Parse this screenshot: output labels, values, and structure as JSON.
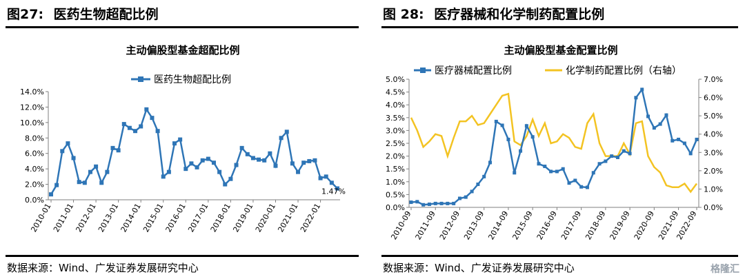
{
  "figures": [
    {
      "label": "图27:",
      "title": "医药生物超配比例"
    },
    {
      "label": "图 28:",
      "title": "医疗器械和化学制药配置比例"
    }
  ],
  "source_left": "数据来源：Wind、广发证券发展研究中心",
  "source_right": "数据来源：Wind、广发证券发展研究中心",
  "watermark": "格隆汇",
  "chart_data": [
    {
      "type": "line",
      "title": "主动偏股型基金超配比例",
      "legend_position": "top",
      "series": [
        {
          "name": "医药生物超配比例",
          "color": "#2e75b6",
          "values": [
            0.7,
            1.9,
            6.3,
            7.3,
            5.4,
            2.3,
            2.2,
            3.6,
            4.3,
            2.2,
            3.6,
            6.7,
            6.4,
            9.8,
            9.3,
            8.9,
            9.5,
            11.7,
            10.6,
            8.9,
            3.0,
            3.6,
            7.3,
            7.8,
            4.0,
            4.7,
            4.2,
            5.1,
            5.3,
            4.8,
            3.6,
            2.0,
            2.7,
            4.5,
            6.7,
            5.9,
            5.4,
            5.2,
            5.1,
            6.0,
            4.4,
            8.0,
            8.8,
            4.7,
            3.6,
            4.8,
            5.0,
            5.1,
            2.8,
            3.0,
            2.2,
            1.47
          ]
        }
      ],
      "x_tick_labels": [
        "2010-01",
        "2011-01",
        "2012-01",
        "2013-01",
        "2014-01",
        "2015-01",
        "2016-01",
        "2017-01",
        "2018-01",
        "2019-01",
        "2020-01",
        "2021-01",
        "2022-01"
      ],
      "y_tick_labels": [
        "0.0%",
        "2.0%",
        "4.0%",
        "6.0%",
        "8.0%",
        "10.0%",
        "12.0%",
        "14.0%"
      ],
      "ylim": [
        0,
        14
      ],
      "data_label": "1.47%",
      "grid": false
    },
    {
      "type": "line",
      "title": "主动偏股型基金配置比例",
      "legend_position": "top",
      "series": [
        {
          "name": "医疗器械配置比例",
          "axis": "left",
          "color": "#2e75b6",
          "values": [
            0.2,
            0.22,
            0.1,
            0.12,
            0.15,
            0.15,
            0.15,
            0.15,
            0.35,
            0.4,
            0.62,
            0.9,
            1.2,
            1.75,
            3.35,
            3.2,
            2.65,
            1.35,
            2.2,
            3.18,
            2.75,
            1.7,
            1.6,
            1.4,
            1.4,
            1.5,
            0.95,
            1.05,
            0.8,
            0.78,
            1.35,
            1.7,
            1.8,
            2.0,
            1.95,
            2.2,
            2.1,
            4.28,
            4.6,
            3.55,
            3.1,
            3.25,
            3.6,
            2.6,
            2.65,
            2.5,
            2.1,
            2.65
          ]
        },
        {
          "name": "化学制药配置比例（右轴）",
          "axis": "right",
          "color": "#f3c322",
          "values": [
            4.9,
            4.2,
            3.3,
            3.6,
            4.0,
            3.9,
            2.8,
            3.8,
            4.7,
            4.7,
            5.0,
            4.5,
            4.6,
            5.1,
            5.6,
            6.1,
            6.2,
            3.6,
            3.4,
            3.9,
            4.8,
            3.9,
            4.6,
            3.5,
            3.6,
            4.0,
            3.8,
            3.3,
            3.2,
            4.6,
            5.1,
            3.5,
            2.8,
            2.8,
            2.8,
            3.5,
            2.9,
            4.6,
            4.7,
            2.8,
            2.2,
            1.9,
            1.2,
            1.1,
            1.1,
            1.3,
            0.85,
            1.3
          ]
        }
      ],
      "x_tick_labels": [
        "2010-09",
        "2011-09",
        "2012-09",
        "2013-09",
        "2014-09",
        "2015-09",
        "2016-09",
        "2017-09",
        "2018-09",
        "2019-09",
        "2020-09",
        "2021-09",
        "2022-09"
      ],
      "y_left_tick_labels": [
        "0.0%",
        "0.5%",
        "1.0%",
        "1.5%",
        "2.0%",
        "2.5%",
        "3.0%",
        "3.5%",
        "4.0%",
        "4.5%",
        "5.0%"
      ],
      "y_right_tick_labels": [
        "0.0%",
        "1.0%",
        "2.0%",
        "3.0%",
        "4.0%",
        "5.0%",
        "6.0%",
        "7.0%"
      ],
      "ylim_left": [
        0,
        5
      ],
      "ylim_right": [
        0,
        7
      ],
      "grid": false
    }
  ]
}
